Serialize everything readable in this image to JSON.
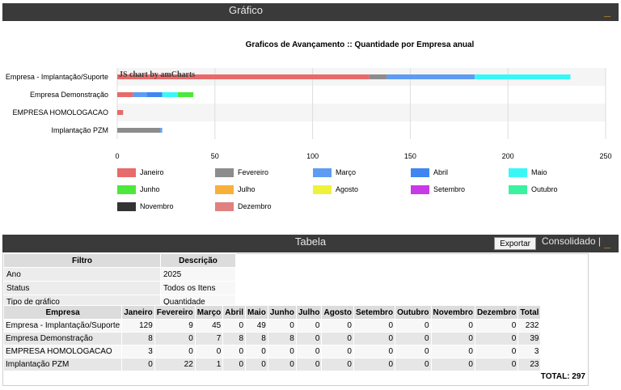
{
  "grafico": {
    "title": "Gráfico",
    "min_label": "_"
  },
  "tabela": {
    "title": "Tabela",
    "export_label": "Exportar",
    "consolidado_label": "Consolidado |",
    "min_label": "_"
  },
  "chart_data": {
    "type": "bar",
    "orientation": "horizontal",
    "stacked": true,
    "title": "Graficos de Avançamento :: Quantidade por Empresa anual",
    "credit": "JS chart by amCharts",
    "categories": [
      "Empresa - Implantação/Suporte",
      "Empresa Demonstração",
      "EMPRESA HOMOLOGACAO",
      "Implantação PZM"
    ],
    "xlim": [
      0,
      250
    ],
    "xticks": [
      0,
      50,
      100,
      150,
      200,
      250
    ],
    "legend_position": "bottom",
    "series": [
      {
        "name": "Janeiro",
        "color": "#e86a6a",
        "values": [
          129,
          8,
          3,
          0
        ]
      },
      {
        "name": "Fevereiro",
        "color": "#8c8c8c",
        "values": [
          9,
          0,
          0,
          22
        ]
      },
      {
        "name": "Março",
        "color": "#5d9cf2",
        "values": [
          45,
          7,
          0,
          1
        ]
      },
      {
        "name": "Abril",
        "color": "#3f86f0",
        "values": [
          0,
          8,
          0,
          0
        ]
      },
      {
        "name": "Maio",
        "color": "#3af7f7",
        "values": [
          49,
          8,
          0,
          0
        ]
      },
      {
        "name": "Junho",
        "color": "#4de83a",
        "values": [
          0,
          8,
          0,
          0
        ]
      },
      {
        "name": "Julho",
        "color": "#f7b13a",
        "values": [
          0,
          0,
          0,
          0
        ]
      },
      {
        "name": "Agosto",
        "color": "#eef23a",
        "values": [
          0,
          0,
          0,
          0
        ]
      },
      {
        "name": "Setembro",
        "color": "#c83ae8",
        "values": [
          0,
          0,
          0,
          0
        ]
      },
      {
        "name": "Outubro",
        "color": "#3af2a0",
        "values": [
          0,
          0,
          0,
          0
        ]
      },
      {
        "name": "Novembro",
        "color": "#333333",
        "values": [
          0,
          0,
          0,
          0
        ]
      },
      {
        "name": "Dezembro",
        "color": "#e08080",
        "values": [
          0,
          0,
          0,
          0
        ]
      }
    ]
  },
  "filtro": {
    "headers": [
      "Filtro",
      "Descrição"
    ],
    "rows": [
      [
        "Ano",
        "2025"
      ],
      [
        "Status",
        "Todos os Itens"
      ],
      [
        "Tipo de gráfico",
        "Quantidade"
      ]
    ]
  },
  "table": {
    "headers": [
      "Empresa",
      "Janeiro",
      "Fevereiro",
      "Março",
      "Abril",
      "Maio",
      "Junho",
      "Julho",
      "Agosto",
      "Setembro",
      "Outubro",
      "Novembro",
      "Dezembro",
      "Total"
    ],
    "rows": [
      [
        "Empresa - Implantação/Suporte",
        "129",
        "9",
        "45",
        "0",
        "49",
        "0",
        "0",
        "0",
        "0",
        "0",
        "0",
        "0",
        "232"
      ],
      [
        "Empresa Demonstração",
        "8",
        "0",
        "7",
        "8",
        "8",
        "8",
        "0",
        "0",
        "0",
        "0",
        "0",
        "0",
        "39"
      ],
      [
        "EMPRESA HOMOLOGACAO",
        "3",
        "0",
        "0",
        "0",
        "0",
        "0",
        "0",
        "0",
        "0",
        "0",
        "0",
        "0",
        "3"
      ],
      [
        "Implantação PZM",
        "0",
        "22",
        "1",
        "0",
        "0",
        "0",
        "0",
        "0",
        "0",
        "0",
        "0",
        "0",
        "23"
      ]
    ],
    "total_label": "TOTAL: 297"
  }
}
